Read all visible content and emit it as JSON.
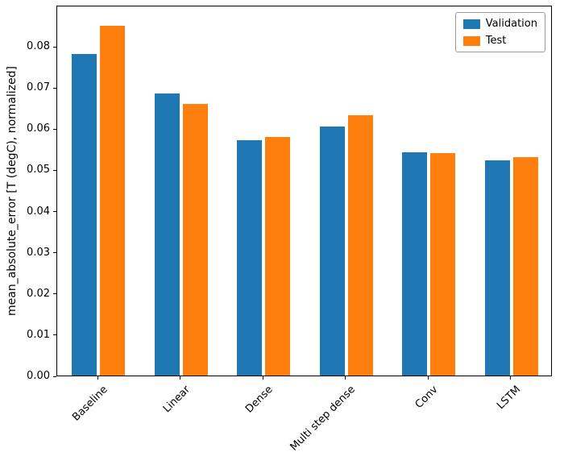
{
  "chart_data": {
    "type": "bar",
    "categories": [
      "Baseline",
      "Linear",
      "Dense",
      "Multi step dense",
      "Conv",
      "LSTM"
    ],
    "series": [
      {
        "name": "Validation",
        "color": "#1f77b4",
        "values": [
          0.0785,
          0.0687,
          0.0573,
          0.0607,
          0.0545,
          0.0524
        ]
      },
      {
        "name": "Test",
        "color": "#ff7f0e",
        "values": [
          0.0852,
          0.0662,
          0.0582,
          0.0634,
          0.0543,
          0.0533
        ]
      }
    ],
    "title": "",
    "xlabel": "",
    "ylabel": "mean_absolute_error [T (degC), normalized]",
    "ylim": [
      0,
      0.09
    ],
    "yticks": [
      0.0,
      0.01,
      0.02,
      0.03,
      0.04,
      0.05,
      0.06,
      0.07,
      0.08
    ],
    "ytick_labels": [
      "0.00",
      "0.01",
      "0.02",
      "0.03",
      "0.04",
      "0.05",
      "0.06",
      "0.07",
      "0.08"
    ],
    "bar_width_fraction": 0.3,
    "bar_offset_fraction": 0.17,
    "grid": false,
    "legend": {
      "position": "upper right",
      "entries": [
        "Validation",
        "Test"
      ]
    }
  }
}
